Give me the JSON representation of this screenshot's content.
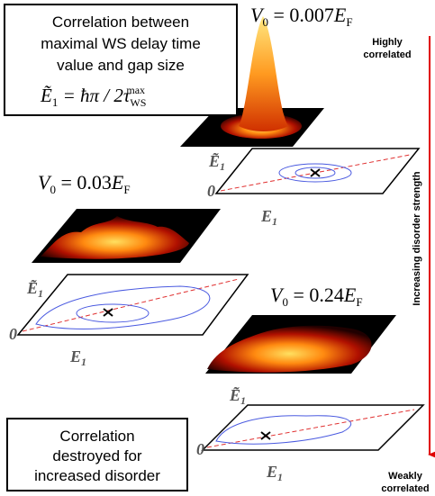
{
  "box_top": {
    "lines": [
      "Correlation between",
      "maximal WS delay time",
      "value and gap size"
    ],
    "formula": {
      "symbol": "Ẽ",
      "sub": "1",
      "rest": " = ħπ / 2τ",
      "sub2": "WS",
      "sup": "max"
    }
  },
  "panels": [
    {
      "label": {
        "symbol": "V",
        "sub": "0",
        "value": " = 0.007",
        "unit": "E",
        "unit_sub": "F"
      },
      "y_axis": {
        "symbol": "Ẽ",
        "sub": "1"
      },
      "x_axis": {
        "symbol": "E",
        "sub": "1"
      },
      "origin": "0"
    },
    {
      "label": {
        "symbol": "V",
        "sub": "0",
        "value": " = 0.03",
        "unit": "E",
        "unit_sub": "F"
      },
      "y_axis": {
        "symbol": "Ẽ",
        "sub": "1"
      },
      "x_axis": {
        "symbol": "E",
        "sub": "1"
      },
      "origin": "0"
    },
    {
      "label": {
        "symbol": "V",
        "sub": "0",
        "value": " = 0.24",
        "unit": "E",
        "unit_sub": "F"
      },
      "y_axis": {
        "symbol": "Ẽ",
        "sub": "1"
      },
      "x_axis": {
        "symbol": "E",
        "sub": "1"
      },
      "origin": "0"
    }
  ],
  "top_note": [
    "Highly",
    "correlated"
  ],
  "arrow_label": "Increasing disorder strength",
  "bottom_note": [
    "Weakly",
    "correlated"
  ],
  "box_bottom": {
    "lines": [
      "Correlation",
      "destroyed for",
      "increased disorder"
    ]
  }
}
